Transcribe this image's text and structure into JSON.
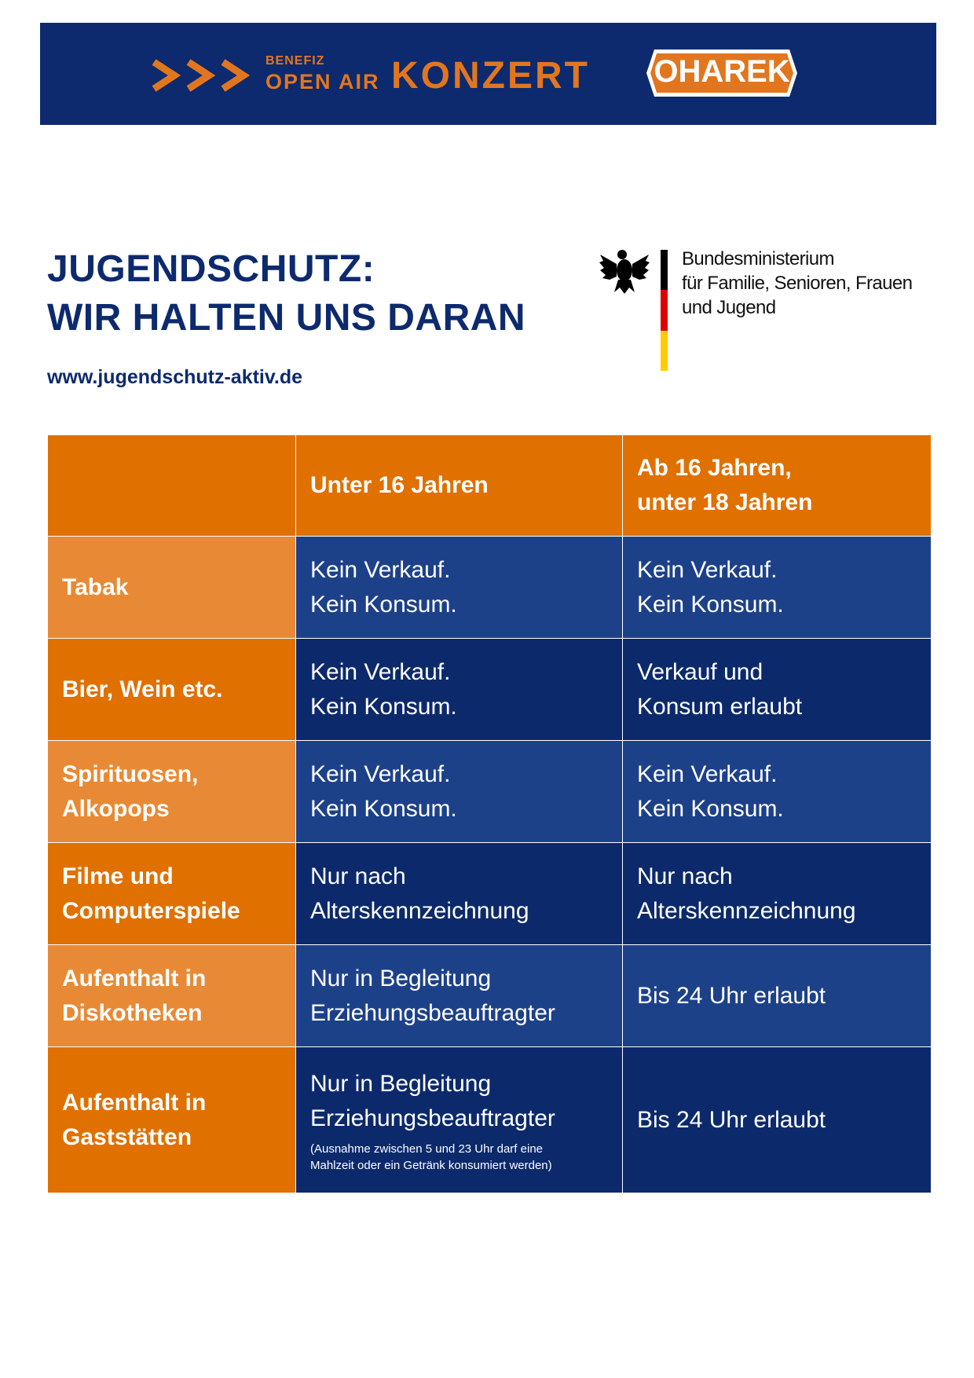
{
  "header": {
    "benefiz": "BENEFIZ",
    "open_air": "OPEN AIR",
    "konzert": "KONZERT",
    "logo": "OHAREK"
  },
  "title": [
    "JUGENDSCHUTZ:",
    "WIR HALTEN UNS DARAN"
  ],
  "url": "www.jugendschutz-aktiv.de",
  "ministry": [
    "Bundesministerium",
    "für Familie, Senioren, Frauen",
    "und Jugend"
  ],
  "table": {
    "columns": [
      [
        "Unter 16 Jahren"
      ],
      [
        "Ab 16 Jahren,",
        "unter 18 Jahren"
      ]
    ],
    "rows": [
      {
        "label": [
          "Tabak"
        ],
        "cells": [
          [
            "Kein Verkauf.",
            "Kein Konsum."
          ],
          [
            "Kein Verkauf.",
            "Kein Konsum."
          ]
        ]
      },
      {
        "label": [
          "Bier, Wein etc."
        ],
        "cells": [
          [
            "Kein Verkauf.",
            "Kein Konsum."
          ],
          [
            "Verkauf und",
            "Konsum erlaubt"
          ]
        ]
      },
      {
        "label": [
          "Spirituosen,",
          "Alkopops"
        ],
        "cells": [
          [
            "Kein Verkauf.",
            "Kein Konsum."
          ],
          [
            "Kein Verkauf.",
            "Kein Konsum."
          ]
        ]
      },
      {
        "label": [
          "Filme und",
          "Computerspiele"
        ],
        "cells": [
          [
            "Nur nach",
            "Alterskennzeichnung"
          ],
          [
            "Nur nach",
            "Alterskennzeichnung"
          ]
        ]
      },
      {
        "label": [
          "Aufenthalt in",
          "Diskotheken"
        ],
        "cells": [
          [
            "Nur in Begleitung",
            "Erziehungsbeauftragter"
          ],
          [
            "Bis 24 Uhr erlaubt"
          ]
        ]
      },
      {
        "label": [
          "Aufenthalt in",
          "Gaststätten"
        ],
        "cells": [
          [
            "Nur in Begleitung",
            "Erziehungsbeauftragter"
          ],
          [
            "Bis 24 Uhr erlaubt"
          ]
        ],
        "note": [
          "(Ausnahme zwischen 5 und 23 Uhr darf eine",
          "Mahlzeit oder ein Getränk konsumiert werden)"
        ]
      }
    ]
  }
}
